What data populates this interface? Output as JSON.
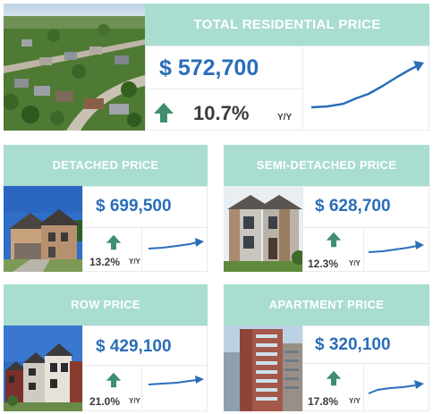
{
  "colors": {
    "header_bg": "#a8ddd0",
    "price_text": "#2a6eb8",
    "arrow_green": "#3f8f6e",
    "trend_line": "#2a6eb8"
  },
  "icons": {
    "change": "arrow-up-icon",
    "trend": "trend-up-line-icon"
  },
  "total": {
    "title": "TOTAL RESIDENTIAL PRICE",
    "price": "$  572,700",
    "change": "10.7%",
    "period": "Y/Y"
  },
  "detached": {
    "title": "DETACHED PRICE",
    "price": "$  699,500",
    "change": "13.2%",
    "period": "Y/Y"
  },
  "semi": {
    "title": "SEMI-DETACHED PRICE",
    "price": "$  628,700",
    "change": "12.3%",
    "period": "Y/Y"
  },
  "row": {
    "title": "ROW PRICE",
    "price": "$  429,100",
    "change": "21.0%",
    "period": "Y/Y"
  },
  "apartment": {
    "title": "APARTMENT PRICE",
    "price": "$  320,100",
    "change": "17.8%",
    "period": "Y/Y"
  }
}
